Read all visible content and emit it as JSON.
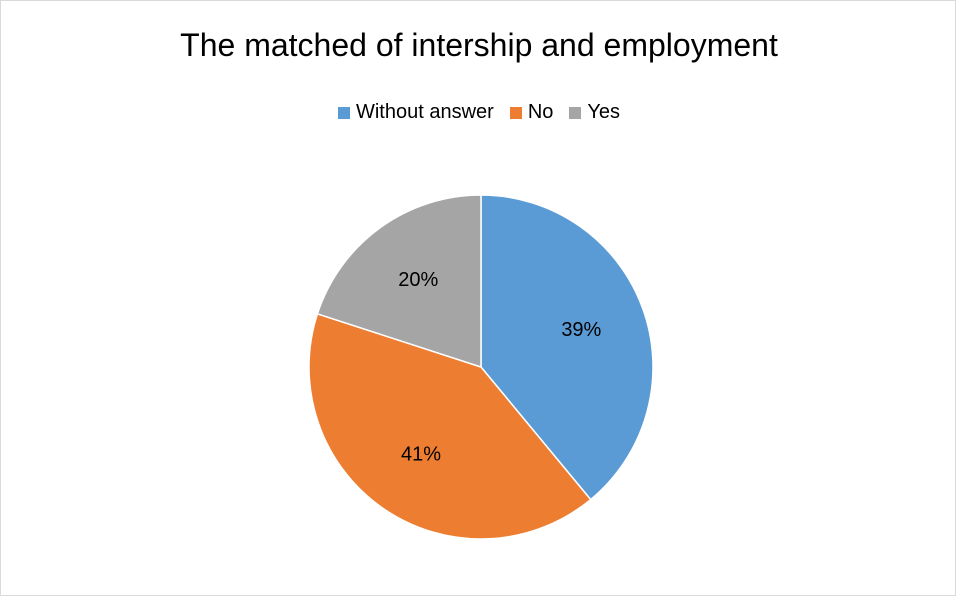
{
  "chart_data": {
    "type": "pie",
    "title": "The matched of intership and employment",
    "categories": [
      "Without answer",
      "No",
      "Yes"
    ],
    "values": [
      39,
      41,
      20
    ],
    "labels": [
      "39%",
      "41%",
      "20%"
    ],
    "colors": [
      "#5b9bd5",
      "#ed7d31",
      "#a5a5a5"
    ],
    "legend_position": "top"
  }
}
